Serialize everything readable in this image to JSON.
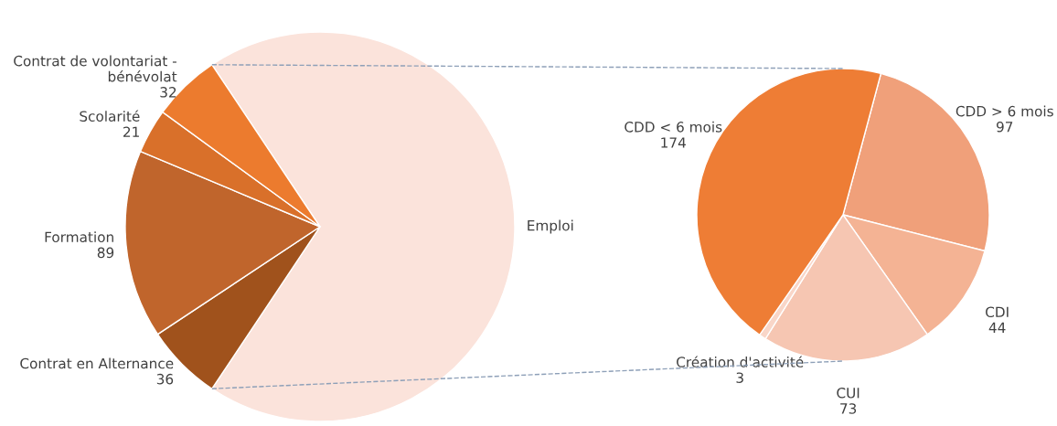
{
  "chart_data": [
    {
      "type": "pie",
      "categories": [
        "Emploi",
        "Contrat en Alternance",
        "Formation",
        "Scolarité",
        "Contrat de volontariat -\nbénévolat"
      ],
      "values": [
        391,
        36,
        89,
        21,
        32
      ],
      "value_labels": [
        null,
        "36",
        "89",
        "21",
        "32"
      ],
      "colors": [
        "#fbe3db",
        "#a0521c",
        "#c0652c",
        "#d9702a",
        "#ec7b2e"
      ]
    },
    {
      "type": "pie",
      "categories": [
        "CDD > 6 mois",
        "CDI",
        "CUI",
        "Création d'activité",
        "CDD < 6 mois"
      ],
      "values": [
        97,
        44,
        73,
        3,
        174
      ],
      "value_labels": [
        "97",
        "44",
        "73",
        "3",
        "174"
      ],
      "colors": [
        "#f0a07a",
        "#f4b394",
        "#f6c6b2",
        "#f9d6c8",
        "#ee7d35"
      ]
    }
  ]
}
